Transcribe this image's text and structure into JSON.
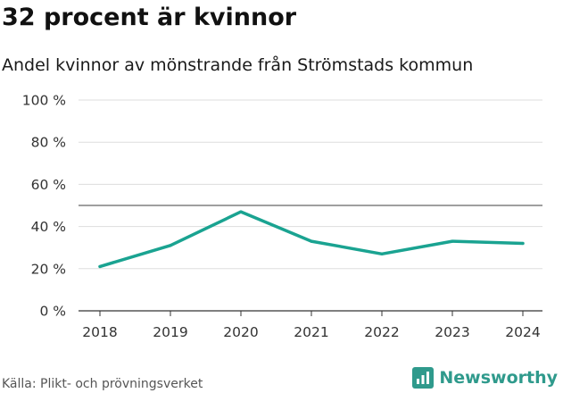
{
  "header": {
    "title": "32 procent är kvinnor",
    "subtitle": "Andel kvinnor av mönstrande från Strömstads kommun"
  },
  "footer": {
    "source": "Källa: Plikt- och prövningsverket",
    "brand_name": "Newsworthy"
  },
  "colors": {
    "line": "#1aa391",
    "reference_line": "#666666",
    "grid": "#dddddd",
    "brand": "#2f9a8c"
  },
  "chart_data": {
    "type": "line",
    "title": "32 procent är kvinnor",
    "subtitle": "Andel kvinnor av mönstrande från Strömstads kommun",
    "xlabel": "",
    "ylabel": "",
    "x": [
      "2018",
      "2019",
      "2020",
      "2021",
      "2022",
      "2023",
      "2024"
    ],
    "series": [
      {
        "name": "Andel kvinnor",
        "values": [
          21,
          31,
          47,
          33,
          27,
          33,
          32
        ]
      }
    ],
    "ylim": [
      0,
      100
    ],
    "yticks": [
      0,
      20,
      40,
      60,
      80,
      100
    ],
    "ytick_labels": [
      "0 %",
      "20 %",
      "40 %",
      "60 %",
      "80 %",
      "100 %"
    ],
    "reference_line": 50,
    "grid": true,
    "legend": "none"
  }
}
